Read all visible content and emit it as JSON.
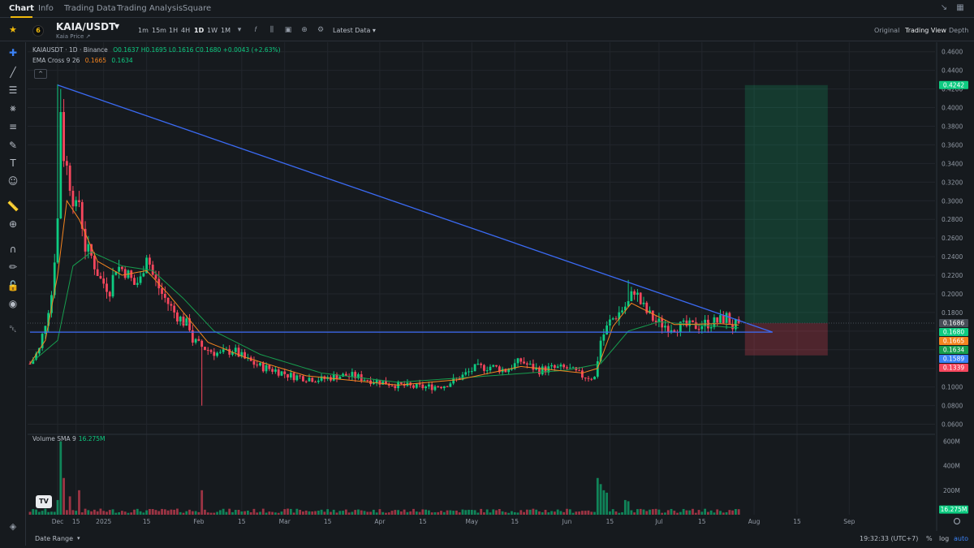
{
  "tabs": [
    {
      "label": "Chart",
      "active": true
    },
    {
      "label": "Info",
      "active": false
    },
    {
      "label": "Trading Data",
      "active": false
    },
    {
      "label": "Trading Analysis",
      "active": false
    },
    {
      "label": "Square",
      "active": false
    }
  ],
  "window_icons": [
    "shrink-icon",
    "grid-icon"
  ],
  "header": {
    "pair": "KAIA/USDT",
    "subtitle": "Kaia Price",
    "intervals": [
      "1m",
      "15m",
      "1H",
      "4H",
      "1D",
      "1W",
      "1M"
    ],
    "active_interval": "1D",
    "latest_data": "Latest Data",
    "views": [
      "Original",
      "Trading View",
      "Depth"
    ],
    "active_view": "Trading View"
  },
  "legend": {
    "symbol": "KAIAUSDT · 1D · Binance",
    "ohlc": "O0.1637 H0.1695 L0.1616 C0.1680 +0.0043 (+2.63%)",
    "ema_label": "EMA Cross 9 26",
    "ema9": "0.1665",
    "ema26": "0.1634",
    "collapse": "^"
  },
  "volume_legend": {
    "label": "Volume SMA 9",
    "value": "16.275M"
  },
  "tv_logo": "TV",
  "bottom": {
    "date_range": "Date Range",
    "clock": "19:32:33 (UTC+7)",
    "percent": "%",
    "log": "log",
    "auto": "auto"
  },
  "colors": {
    "up": "#0ECB81",
    "down": "#F6465D",
    "trendline": "#3B6BF5",
    "ema9": "#F5841F",
    "ema26": "#169D4E",
    "accent": "#F0B90B"
  },
  "chart_data": {
    "type": "candlestick",
    "symbol": "KAIAUSDT",
    "timeframe": "1D",
    "price_axis": {
      "ylim": [
        0.05,
        0.465
      ],
      "ticks": [
        "0.4600",
        "0.4400",
        "0.4200",
        "0.4000",
        "0.3800",
        "0.3600",
        "0.3400",
        "0.3200",
        "0.3000",
        "0.2800",
        "0.2600",
        "0.2400",
        "0.2200",
        "0.2000",
        "0.1800",
        "0.1600",
        "0.1400",
        "0.1200",
        "0.1000",
        "0.0800",
        "0.0600"
      ]
    },
    "volume_axis": {
      "ylim": [
        0,
        650
      ],
      "ticks": [
        "600M",
        "400M",
        "200M"
      ],
      "unit": "M"
    },
    "time_axis": {
      "ticks": [
        {
          "label": "Dec",
          "day": 9
        },
        {
          "label": "15",
          "day": 15
        },
        {
          "label": "2025",
          "day": 24
        },
        {
          "label": "15",
          "day": 38
        },
        {
          "label": "Feb",
          "day": 55
        },
        {
          "label": "15",
          "day": 69
        },
        {
          "label": "Mar",
          "day": 83
        },
        {
          "label": "15",
          "day": 97
        },
        {
          "label": "Apr",
          "day": 114
        },
        {
          "label": "15",
          "day": 128
        },
        {
          "label": "May",
          "day": 144
        },
        {
          "label": "15",
          "day": 158
        },
        {
          "label": "Jun",
          "day": 175
        },
        {
          "label": "15",
          "day": 189
        },
        {
          "label": "Jul",
          "day": 205
        },
        {
          "label": "15",
          "day": 219
        },
        {
          "label": "Aug",
          "day": 236
        },
        {
          "label": "15",
          "day": 250
        },
        {
          "label": "Sep",
          "day": 267
        }
      ],
      "last_day": 231
    },
    "anchors": [
      [
        0,
        0.125
      ],
      [
        3,
        0.14
      ],
      [
        5,
        0.17
      ],
      [
        7,
        0.2
      ],
      [
        9,
        0.28
      ],
      [
        10,
        0.4
      ],
      [
        11,
        0.35
      ],
      [
        13,
        0.32
      ],
      [
        15,
        0.29
      ],
      [
        16,
        0.3
      ],
      [
        18,
        0.25
      ],
      [
        20,
        0.24
      ],
      [
        23,
        0.215
      ],
      [
        26,
        0.205
      ],
      [
        28,
        0.23
      ],
      [
        31,
        0.225
      ],
      [
        34,
        0.21
      ],
      [
        36,
        0.215
      ],
      [
        38,
        0.245
      ],
      [
        40,
        0.22
      ],
      [
        43,
        0.2
      ],
      [
        47,
        0.18
      ],
      [
        50,
        0.17
      ],
      [
        52,
        0.165
      ],
      [
        53,
        0.15
      ],
      [
        55,
        0.145
      ],
      [
        58,
        0.14
      ],
      [
        62,
        0.135
      ],
      [
        66,
        0.14
      ],
      [
        70,
        0.13
      ],
      [
        75,
        0.122
      ],
      [
        80,
        0.118
      ],
      [
        85,
        0.112
      ],
      [
        90,
        0.11
      ],
      [
        95,
        0.108
      ],
      [
        100,
        0.112
      ],
      [
        105,
        0.112
      ],
      [
        110,
        0.108
      ],
      [
        115,
        0.105
      ],
      [
        120,
        0.102
      ],
      [
        125,
        0.1
      ],
      [
        130,
        0.1
      ],
      [
        135,
        0.102
      ],
      [
        140,
        0.11
      ],
      [
        145,
        0.12
      ],
      [
        150,
        0.122
      ],
      [
        155,
        0.118
      ],
      [
        160,
        0.128
      ],
      [
        163,
        0.122
      ],
      [
        166,
        0.118
      ],
      [
        170,
        0.12
      ],
      [
        175,
        0.12
      ],
      [
        180,
        0.112
      ],
      [
        184,
        0.11
      ],
      [
        186,
        0.15
      ],
      [
        189,
        0.17
      ],
      [
        192,
        0.18
      ],
      [
        195,
        0.19
      ],
      [
        197,
        0.205
      ],
      [
        199,
        0.19
      ],
      [
        201,
        0.18
      ],
      [
        204,
        0.17
      ],
      [
        208,
        0.165
      ],
      [
        212,
        0.165
      ],
      [
        216,
        0.165
      ],
      [
        220,
        0.168
      ],
      [
        224,
        0.17
      ],
      [
        227,
        0.175
      ],
      [
        229,
        0.165
      ],
      [
        231,
        0.168
      ]
    ],
    "wicks": [
      [
        10,
        0.42
      ],
      [
        9,
        0.425
      ],
      [
        56,
        0.08
      ],
      [
        195,
        0.215
      ]
    ],
    "ema9_anchors": [
      [
        0,
        0.125
      ],
      [
        5,
        0.15
      ],
      [
        9,
        0.22
      ],
      [
        12,
        0.3
      ],
      [
        16,
        0.28
      ],
      [
        22,
        0.235
      ],
      [
        30,
        0.22
      ],
      [
        38,
        0.225
      ],
      [
        45,
        0.2
      ],
      [
        52,
        0.172
      ],
      [
        58,
        0.148
      ],
      [
        70,
        0.132
      ],
      [
        90,
        0.112
      ],
      [
        120,
        0.102
      ],
      [
        140,
        0.108
      ],
      [
        160,
        0.122
      ],
      [
        180,
        0.115
      ],
      [
        185,
        0.12
      ],
      [
        190,
        0.165
      ],
      [
        196,
        0.19
      ],
      [
        202,
        0.18
      ],
      [
        210,
        0.167
      ],
      [
        225,
        0.168
      ],
      [
        231,
        0.1665
      ]
    ],
    "ema26_anchors": [
      [
        0,
        0.125
      ],
      [
        9,
        0.15
      ],
      [
        14,
        0.23
      ],
      [
        20,
        0.245
      ],
      [
        30,
        0.23
      ],
      [
        40,
        0.225
      ],
      [
        50,
        0.195
      ],
      [
        60,
        0.16
      ],
      [
        75,
        0.135
      ],
      [
        95,
        0.115
      ],
      [
        120,
        0.105
      ],
      [
        150,
        0.112
      ],
      [
        175,
        0.118
      ],
      [
        186,
        0.125
      ],
      [
        195,
        0.16
      ],
      [
        205,
        0.17
      ],
      [
        220,
        0.166
      ],
      [
        231,
        0.1634
      ]
    ],
    "volume_spikes": [
      [
        9,
        120
      ],
      [
        10,
        600
      ],
      [
        11,
        300
      ],
      [
        13,
        150
      ],
      [
        16,
        200
      ],
      [
        56,
        200
      ],
      [
        185,
        300
      ],
      [
        186,
        250
      ],
      [
        187,
        200
      ],
      [
        188,
        180
      ],
      [
        194,
        120
      ],
      [
        195,
        110
      ]
    ],
    "trendline": {
      "from": [
        9,
        0.4242
      ],
      "to": [
        242,
        0.1589
      ]
    },
    "support_line": {
      "from": [
        0,
        0.1589
      ],
      "to": [
        242,
        0.1589
      ]
    },
    "position": {
      "from_day": 233,
      "to_day": 260,
      "entry": 0.1686,
      "target": 0.4242,
      "stop": 0.1339
    },
    "price_tags": [
      {
        "label": "0.4242",
        "value": 0.4242,
        "color": "#0ECB81"
      },
      {
        "label": "0.1686",
        "value": 0.1686,
        "color": "#474D57"
      },
      {
        "label": "0.1680",
        "value": 0.168,
        "color": "#0ECB81"
      },
      {
        "label": "0.1665",
        "value": 0.1665,
        "color": "#F5841F"
      },
      {
        "label": "0.1634",
        "value": 0.1634,
        "color": "#169D4E"
      },
      {
        "label": "0.1589",
        "value": 0.1589,
        "color": "#3B82F6"
      },
      {
        "label": "0.1339",
        "value": 0.1339,
        "color": "#F6465D"
      }
    ],
    "volume_tag": {
      "label": "16.275M",
      "color": "#0ECB81"
    }
  }
}
